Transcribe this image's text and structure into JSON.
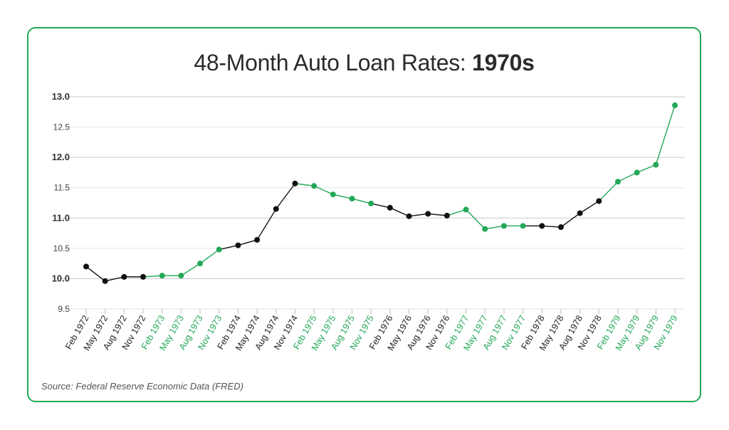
{
  "title": {
    "regular": "48-Month Auto Loan Rates: ",
    "bold": "1970s"
  },
  "source": "Source: Federal Reserve Economic Data (FRED)",
  "colors": {
    "border": "#22a856",
    "green": "#22a856",
    "black": "#111111",
    "grid": "#d6d6d6"
  },
  "chart_data": {
    "type": "line",
    "title": "48-Month Auto Loan Rates: 1970s",
    "xlabel": "",
    "ylabel": "",
    "ylim": [
      9.5,
      13.0
    ],
    "yticks": [
      "9.5",
      "10.0",
      "10.5",
      "11.0",
      "11.5",
      "12.0",
      "12.5",
      "13.0"
    ],
    "grid": true,
    "categories": [
      "Feb 1972",
      "May 1972",
      "Aug 1972",
      "Nov 1972",
      "Feb 1973",
      "May 1973",
      "Aug 1973",
      "Nov 1973",
      "Feb 1974",
      "May 1974",
      "Aug 1974",
      "Nov 1974",
      "Feb 1975",
      "May 1975",
      "Aug 1975",
      "Nov 1975",
      "Feb 1976",
      "May 1976",
      "Aug 1976",
      "Nov 1976",
      "Feb 1977",
      "May 1977",
      "Aug 1977",
      "Nov 1977",
      "Feb 1978",
      "May 1978",
      "Aug 1978",
      "Nov 1978",
      "Feb 1979",
      "May 1979",
      "Aug 1979",
      "Nov 1979"
    ],
    "values": [
      10.2,
      9.96,
      10.03,
      10.03,
      10.05,
      10.05,
      10.25,
      10.48,
      10.55,
      10.64,
      11.15,
      11.57,
      11.53,
      11.39,
      11.32,
      11.24,
      11.17,
      11.03,
      11.07,
      11.04,
      11.14,
      10.82,
      10.87,
      10.87,
      10.87,
      10.85,
      11.08,
      11.28,
      11.6,
      11.75,
      11.88,
      12.86
    ],
    "highlight_year": [
      false,
      false,
      false,
      false,
      true,
      true,
      true,
      true,
      false,
      false,
      false,
      false,
      true,
      true,
      true,
      true,
      false,
      false,
      false,
      false,
      true,
      true,
      true,
      true,
      false,
      false,
      false,
      false,
      true,
      true,
      true,
      true
    ]
  }
}
